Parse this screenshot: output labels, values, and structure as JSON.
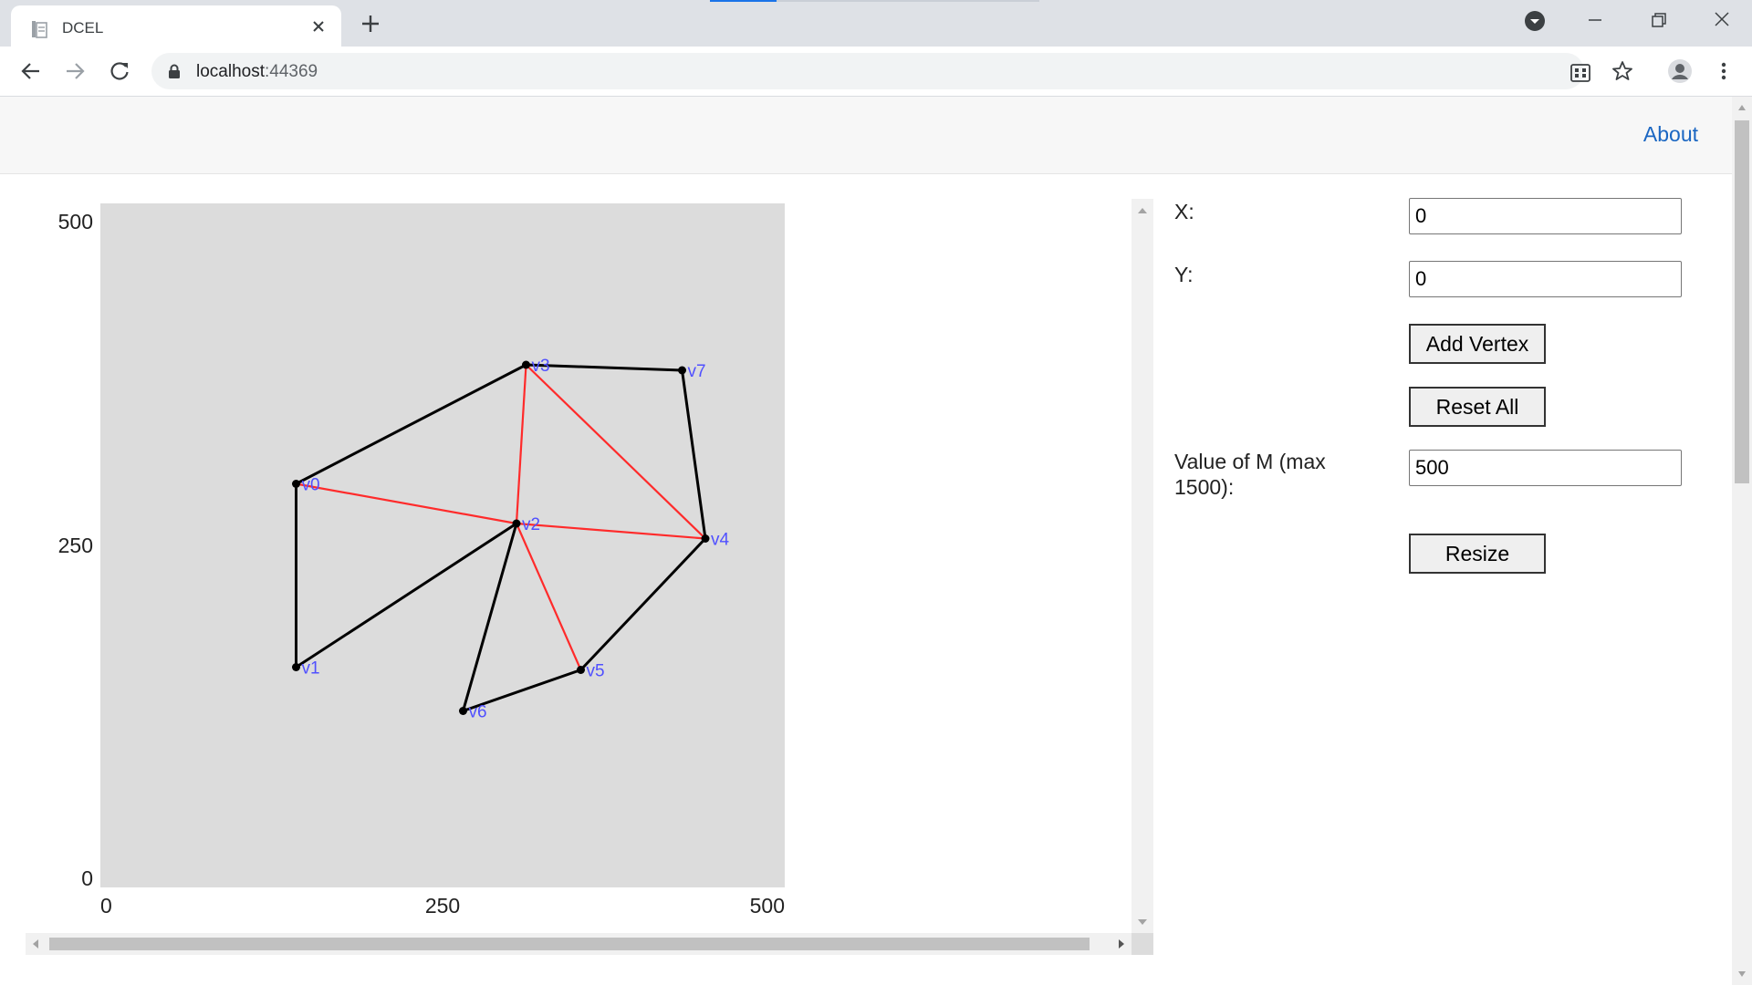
{
  "browser": {
    "tab_title": "DCEL",
    "url_host": "localhost",
    "url_port": ":44369",
    "icons": [
      "page-icon",
      "close-icon",
      "plus-icon",
      "profile-dropdown-icon",
      "minimize-icon",
      "restore-icon",
      "close-window-icon",
      "back-icon",
      "forward-icon",
      "reload-icon",
      "lock-icon",
      "apps-icon",
      "star-icon",
      "account-icon",
      "menu-icon"
    ]
  },
  "navbar": {
    "about_label": "About"
  },
  "form": {
    "x_label": "X:",
    "x_value": "0",
    "y_label": "Y:",
    "y_value": "0",
    "add_vertex_label": "Add Vertex",
    "reset_all_label": "Reset All",
    "m_label": "Value of M (max 1500):",
    "m_value": "500",
    "resize_label": "Resize"
  },
  "chart_data": {
    "type": "graph",
    "xlim": [
      0,
      500
    ],
    "ylim": [
      0,
      500
    ],
    "x_ticks": [
      "0",
      "250",
      "500"
    ],
    "y_ticks": [
      "0",
      "250",
      "500"
    ],
    "vertices": [
      {
        "name": "v0",
        "x": 143,
        "y": 295
      },
      {
        "name": "v1",
        "x": 143,
        "y": 161
      },
      {
        "name": "v2",
        "x": 304,
        "y": 266
      },
      {
        "name": "v3",
        "x": 311,
        "y": 382
      },
      {
        "name": "v4",
        "x": 442,
        "y": 255
      },
      {
        "name": "v5",
        "x": 351,
        "y": 159
      },
      {
        "name": "v6",
        "x": 265,
        "y": 129
      },
      {
        "name": "v7",
        "x": 425,
        "y": 378
      }
    ],
    "edges": [
      {
        "from": "v0",
        "to": "v3",
        "color": "#000000"
      },
      {
        "from": "v3",
        "to": "v7",
        "color": "#000000"
      },
      {
        "from": "v7",
        "to": "v4",
        "color": "#000000"
      },
      {
        "from": "v4",
        "to": "v5",
        "color": "#000000"
      },
      {
        "from": "v5",
        "to": "v6",
        "color": "#000000"
      },
      {
        "from": "v6",
        "to": "v2",
        "color": "#000000"
      },
      {
        "from": "v2",
        "to": "v1",
        "color": "#000000"
      },
      {
        "from": "v1",
        "to": "v0",
        "color": "#000000"
      },
      {
        "from": "v0",
        "to": "v2",
        "color": "#ff2b2b"
      },
      {
        "from": "v2",
        "to": "v3",
        "color": "#ff2b2b"
      },
      {
        "from": "v3",
        "to": "v4",
        "color": "#ff2b2b"
      },
      {
        "from": "v2",
        "to": "v4",
        "color": "#ff2b2b"
      },
      {
        "from": "v2",
        "to": "v5",
        "color": "#ff2b2b"
      }
    ],
    "label_color": "#5050ff",
    "plot_background": "#dcdcdc"
  }
}
